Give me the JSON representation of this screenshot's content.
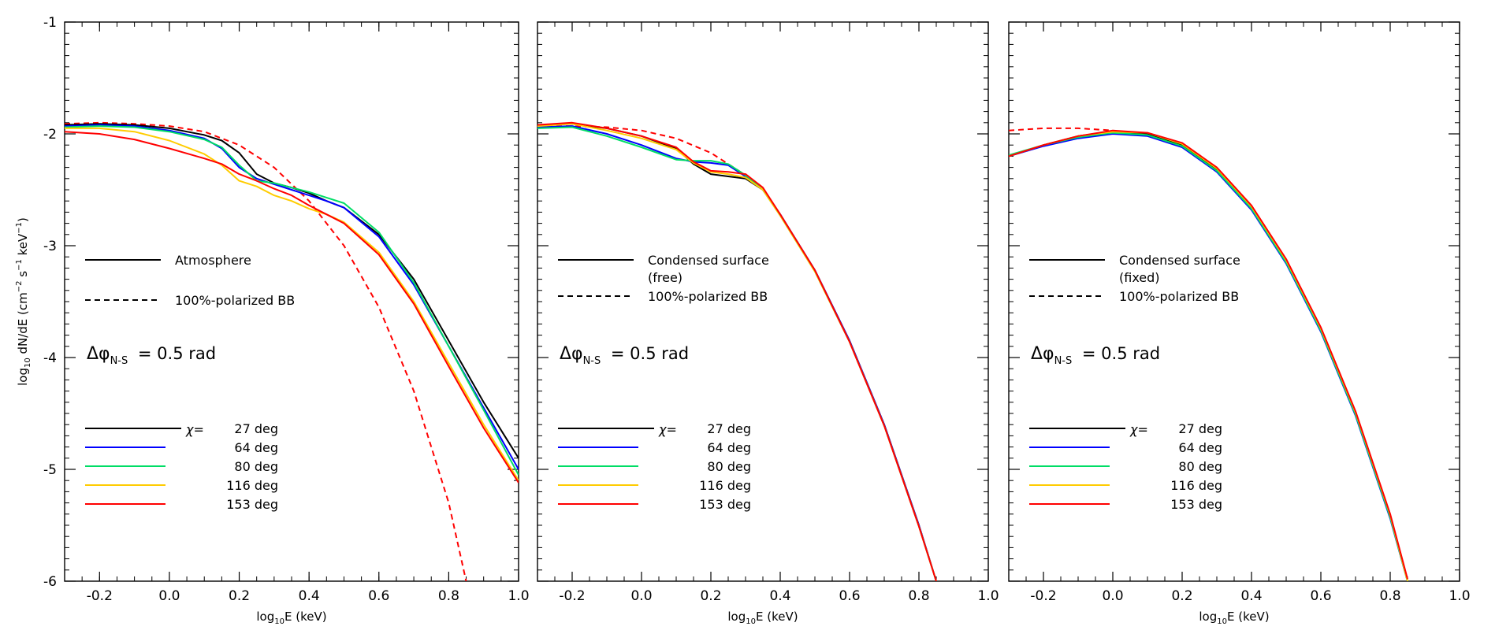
{
  "chart_data": [
    {
      "type": "line",
      "panel": "left",
      "xlabel": "log10E (keV)",
      "ylabel": "log10 dN/dE (cm-2 s-1 keV-1)",
      "xlim": [
        -0.3,
        1.0
      ],
      "ylim": [
        -6,
        -1
      ],
      "xticks": [
        "-0.2",
        "0.0",
        "0.2",
        "0.4",
        "0.6",
        "0.8",
        "1.0"
      ],
      "yticks": [
        "-1",
        "-2",
        "-3",
        "-4",
        "-5",
        "-6"
      ],
      "legend_model": [
        {
          "label": "Atmosphere",
          "style": "solid"
        },
        {
          "label": "100%-polarized BB",
          "style": "dashed"
        }
      ],
      "dphi": {
        "symbol": "Δφ",
        "sub": "N-S",
        "text": "= 0.5 rad"
      },
      "chi_symbol": "χ=",
      "series": [
        {
          "name": "27 deg",
          "color": "#000000",
          "x": [
            -0.3,
            -0.2,
            -0.1,
            0.0,
            0.1,
            0.15,
            0.2,
            0.25,
            0.3,
            0.35,
            0.4,
            0.45,
            0.5,
            0.6,
            0.7,
            0.8,
            0.9,
            1.0
          ],
          "y": [
            -1.92,
            -1.91,
            -1.92,
            -1.95,
            -2.01,
            -2.06,
            -2.17,
            -2.36,
            -2.44,
            -2.48,
            -2.53,
            -2.6,
            -2.66,
            -2.9,
            -3.3,
            -3.85,
            -4.4,
            -4.9
          ]
        },
        {
          "name": "64 deg",
          "color": "#0000ff",
          "x": [
            -0.3,
            -0.2,
            -0.1,
            0.0,
            0.1,
            0.15,
            0.2,
            0.25,
            0.3,
            0.35,
            0.4,
            0.45,
            0.5,
            0.6,
            0.7,
            0.8,
            0.9,
            1.0
          ],
          "y": [
            -1.93,
            -1.92,
            -1.93,
            -1.97,
            -2.04,
            -2.13,
            -2.3,
            -2.4,
            -2.45,
            -2.5,
            -2.55,
            -2.6,
            -2.66,
            -2.92,
            -3.35,
            -3.9,
            -4.45,
            -5.0
          ]
        },
        {
          "name": "80 deg",
          "color": "#00dd66",
          "x": [
            -0.3,
            -0.2,
            -0.1,
            0.0,
            0.1,
            0.15,
            0.2,
            0.25,
            0.3,
            0.35,
            0.4,
            0.45,
            0.5,
            0.6,
            0.7,
            0.8,
            0.9,
            1.0
          ],
          "y": [
            -1.94,
            -1.93,
            -1.94,
            -1.98,
            -2.05,
            -2.12,
            -2.28,
            -2.42,
            -2.44,
            -2.48,
            -2.52,
            -2.57,
            -2.62,
            -2.88,
            -3.33,
            -3.9,
            -4.47,
            -5.05
          ]
        },
        {
          "name": "116 deg",
          "color": "#ffcc00",
          "x": [
            -0.3,
            -0.2,
            -0.1,
            0.0,
            0.1,
            0.15,
            0.2,
            0.25,
            0.3,
            0.35,
            0.4,
            0.45,
            0.5,
            0.6,
            0.7,
            0.8,
            0.9,
            1.0
          ],
          "y": [
            -1.95,
            -1.95,
            -1.98,
            -2.06,
            -2.18,
            -2.28,
            -2.42,
            -2.47,
            -2.55,
            -2.6,
            -2.67,
            -2.72,
            -2.79,
            -3.06,
            -3.5,
            -4.05,
            -4.6,
            -5.1
          ]
        },
        {
          "name": "153 deg",
          "color": "#ff0000",
          "x": [
            -0.3,
            -0.2,
            -0.1,
            0.0,
            0.1,
            0.15,
            0.2,
            0.25,
            0.3,
            0.35,
            0.4,
            0.45,
            0.5,
            0.6,
            0.7,
            0.8,
            0.9,
            1.0
          ],
          "y": [
            -1.98,
            -2.0,
            -2.05,
            -2.13,
            -2.22,
            -2.27,
            -2.36,
            -2.42,
            -2.49,
            -2.55,
            -2.64,
            -2.72,
            -2.8,
            -3.08,
            -3.52,
            -4.08,
            -4.63,
            -5.12
          ]
        },
        {
          "name": "100%-polarized BB",
          "color": "#ff0000",
          "dashed": true,
          "x": [
            -0.3,
            -0.2,
            -0.1,
            0.0,
            0.1,
            0.2,
            0.3,
            0.4,
            0.5,
            0.6,
            0.7,
            0.8,
            0.85
          ],
          "y": [
            -1.91,
            -1.9,
            -1.91,
            -1.93,
            -1.98,
            -2.1,
            -2.3,
            -2.6,
            -3.0,
            -3.55,
            -4.3,
            -5.3,
            -6.0
          ]
        }
      ]
    },
    {
      "type": "line",
      "panel": "middle",
      "xlabel": "log10E (keV)",
      "xlim": [
        -0.3,
        1.0
      ],
      "ylim": [
        -6,
        -1
      ],
      "xticks": [
        "-0.2",
        "0.0",
        "0.2",
        "0.4",
        "0.6",
        "0.8",
        "1.0"
      ],
      "legend_model": [
        {
          "label": "Condensed surface",
          "label2": "(free)",
          "style": "solid"
        },
        {
          "label": "100%-polarized BB",
          "style": "dashed"
        }
      ],
      "dphi": {
        "symbol": "Δφ",
        "sub": "N-S",
        "text": "= 0.5 rad"
      },
      "chi_symbol": "χ=",
      "series": [
        {
          "name": "27 deg",
          "color": "#000000",
          "x": [
            -0.3,
            -0.2,
            -0.1,
            0.0,
            0.1,
            0.15,
            0.2,
            0.25,
            0.3,
            0.35,
            0.4,
            0.5,
            0.6,
            0.7,
            0.8,
            0.85
          ],
          "y": [
            -1.92,
            -1.91,
            -1.95,
            -2.02,
            -2.13,
            -2.27,
            -2.36,
            -2.38,
            -2.4,
            -2.5,
            -2.72,
            -3.22,
            -3.85,
            -4.6,
            -5.5,
            -6.0
          ]
        },
        {
          "name": "64 deg",
          "color": "#0000ff",
          "x": [
            -0.3,
            -0.2,
            -0.1,
            0.0,
            0.1,
            0.15,
            0.2,
            0.25,
            0.3,
            0.35,
            0.4,
            0.5,
            0.6,
            0.7,
            0.8,
            0.85
          ],
          "y": [
            -1.94,
            -1.93,
            -2.0,
            -2.1,
            -2.22,
            -2.25,
            -2.26,
            -2.28,
            -2.38,
            -2.5,
            -2.72,
            -3.22,
            -3.85,
            -4.6,
            -5.5,
            -6.0
          ]
        },
        {
          "name": "80 deg",
          "color": "#00dd66",
          "x": [
            -0.3,
            -0.2,
            -0.1,
            0.0,
            0.1,
            0.15,
            0.2,
            0.25,
            0.3,
            0.35,
            0.4,
            0.5,
            0.6,
            0.7,
            0.8,
            0.85
          ],
          "y": [
            -1.95,
            -1.94,
            -2.02,
            -2.12,
            -2.23,
            -2.24,
            -2.24,
            -2.27,
            -2.37,
            -2.5,
            -2.73,
            -3.23,
            -3.86,
            -4.61,
            -5.51,
            -6.0
          ]
        },
        {
          "name": "116 deg",
          "color": "#ffcc00",
          "x": [
            -0.3,
            -0.2,
            -0.1,
            0.0,
            0.1,
            0.15,
            0.2,
            0.25,
            0.3,
            0.35,
            0.4,
            0.5,
            0.6,
            0.7,
            0.8,
            0.85
          ],
          "y": [
            -1.93,
            -1.91,
            -1.97,
            -2.04,
            -2.14,
            -2.26,
            -2.34,
            -2.36,
            -2.39,
            -2.5,
            -2.73,
            -3.23,
            -3.86,
            -4.61,
            -5.51,
            -6.0
          ]
        },
        {
          "name": "153 deg",
          "color": "#ff0000",
          "x": [
            -0.3,
            -0.2,
            -0.1,
            0.0,
            0.1,
            0.15,
            0.2,
            0.25,
            0.3,
            0.35,
            0.4,
            0.5,
            0.6,
            0.7,
            0.8,
            0.85
          ],
          "y": [
            -1.92,
            -1.9,
            -1.95,
            -2.02,
            -2.12,
            -2.25,
            -2.33,
            -2.34,
            -2.36,
            -2.48,
            -2.72,
            -3.22,
            -3.86,
            -4.61,
            -5.51,
            -6.0
          ]
        },
        {
          "name": "100%-polarized BB",
          "color": "#ff0000",
          "dashed": true,
          "x": [
            -0.3,
            -0.2,
            -0.1,
            0.0,
            0.1,
            0.2,
            0.3
          ],
          "y": [
            -1.93,
            -1.93,
            -1.94,
            -1.97,
            -2.04,
            -2.17,
            -2.37
          ]
        }
      ]
    },
    {
      "type": "line",
      "panel": "right",
      "xlabel": "log10E (keV)",
      "xlim": [
        -0.3,
        1.0
      ],
      "ylim": [
        -6,
        -1
      ],
      "xticks": [
        "-0.2",
        "0.0",
        "0.2",
        "0.4",
        "0.6",
        "0.8",
        "1.0"
      ],
      "legend_model": [
        {
          "label": "Condensed surface",
          "label2": "(fixed)",
          "style": "solid"
        },
        {
          "label": "100%-polarized BB",
          "style": "dashed"
        }
      ],
      "dphi": {
        "symbol": "Δφ",
        "sub": "N-S",
        "text": "= 0.5 rad"
      },
      "chi_symbol": "χ=",
      "series": [
        {
          "name": "27 deg",
          "color": "#000000",
          "x": [
            -0.3,
            -0.2,
            -0.1,
            0.0,
            0.1,
            0.2,
            0.3,
            0.4,
            0.5,
            0.6,
            0.7,
            0.8,
            0.85
          ],
          "y": [
            -2.2,
            -2.1,
            -2.02,
            -1.98,
            -2.0,
            -2.1,
            -2.32,
            -2.66,
            -3.14,
            -3.75,
            -4.5,
            -5.42,
            -6.0
          ]
        },
        {
          "name": "64 deg",
          "color": "#0000ff",
          "x": [
            -0.3,
            -0.2,
            -0.1,
            0.0,
            0.1,
            0.2,
            0.3,
            0.4,
            0.5,
            0.6,
            0.7,
            0.8,
            0.85
          ],
          "y": [
            -2.2,
            -2.11,
            -2.04,
            -2.0,
            -2.02,
            -2.12,
            -2.34,
            -2.68,
            -3.16,
            -3.77,
            -4.52,
            -5.44,
            -6.0
          ]
        },
        {
          "name": "80 deg",
          "color": "#00dd66",
          "x": [
            -0.3,
            -0.2,
            -0.1,
            0.0,
            0.1,
            0.2,
            0.3,
            0.4,
            0.5,
            0.6,
            0.7,
            0.8,
            0.85
          ],
          "y": [
            -2.19,
            -2.1,
            -2.03,
            -1.99,
            -2.01,
            -2.11,
            -2.33,
            -2.67,
            -3.15,
            -3.76,
            -4.51,
            -5.43,
            -6.0
          ]
        },
        {
          "name": "116 deg",
          "color": "#ffcc00",
          "x": [
            -0.3,
            -0.2,
            -0.1,
            0.0,
            0.1,
            0.2,
            0.3,
            0.4,
            0.5,
            0.6,
            0.7,
            0.8,
            0.85
          ],
          "y": [
            -2.2,
            -2.1,
            -2.02,
            -1.98,
            -1.99,
            -2.09,
            -2.31,
            -2.65,
            -3.13,
            -3.74,
            -4.49,
            -5.41,
            -6.0
          ]
        },
        {
          "name": "153 deg",
          "color": "#ff0000",
          "x": [
            -0.3,
            -0.2,
            -0.1,
            0.0,
            0.1,
            0.2,
            0.3,
            0.4,
            0.5,
            0.6,
            0.7,
            0.8,
            0.85
          ],
          "y": [
            -2.2,
            -2.1,
            -2.02,
            -1.97,
            -1.99,
            -2.08,
            -2.3,
            -2.64,
            -3.12,
            -3.73,
            -4.48,
            -5.4,
            -5.98
          ]
        },
        {
          "name": "100%-polarized BB",
          "color": "#ff0000",
          "dashed": true,
          "x": [
            -0.3,
            -0.2,
            -0.1,
            0.0
          ],
          "y": [
            -1.97,
            -1.95,
            -1.95,
            -1.97
          ]
        }
      ]
    }
  ]
}
